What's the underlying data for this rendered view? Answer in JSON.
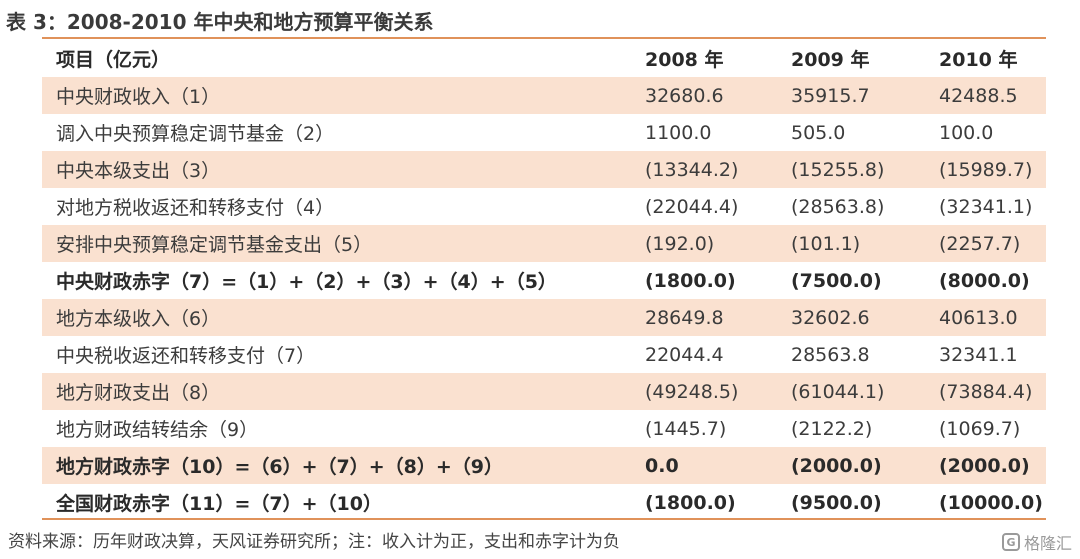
{
  "caption": "表 3：2008-2010 年中央和地方预算平衡关系",
  "table": {
    "header": [
      "项目（亿元）",
      "2008 年",
      "2009 年",
      "2010 年"
    ],
    "rows": [
      {
        "item": "中央财政收入（1）",
        "y2008": "32680.6",
        "y2009": "35915.7",
        "y2010": "42488.5",
        "bold": false
      },
      {
        "item": "调入中央预算稳定调节基金（2）",
        "y2008": "1100.0",
        "y2009": "505.0",
        "y2010": "100.0",
        "bold": false
      },
      {
        "item": "中央本级支出（3）",
        "y2008": "(13344.2)",
        "y2009": "(15255.8)",
        "y2010": "(15989.7)",
        "bold": false
      },
      {
        "item": "对地方税收返还和转移支付（4）",
        "y2008": "(22044.4)",
        "y2009": "(28563.8)",
        "y2010": "(32341.1)",
        "bold": false
      },
      {
        "item": "安排中央预算稳定调节基金支出（5）",
        "y2008": "(192.0)",
        "y2009": "(101.1)",
        "y2010": "(2257.7)",
        "bold": false
      },
      {
        "item": "中央财政赤字（7）=（1）+（2）+（3）+（4）+（5）",
        "y2008": "(1800.0)",
        "y2009": "(7500.0)",
        "y2010": "(8000.0)",
        "bold": true
      },
      {
        "item": "地方本级收入（6）",
        "y2008": "28649.8",
        "y2009": "32602.6",
        "y2010": "40613.0",
        "bold": false
      },
      {
        "item": "中央税收返还和转移支付（7）",
        "y2008": "22044.4",
        "y2009": "28563.8",
        "y2010": "32341.1",
        "bold": false
      },
      {
        "item": "地方财政支出（8）",
        "y2008": "(49248.5)",
        "y2009": "(61044.1)",
        "y2010": "(73884.4)",
        "bold": false
      },
      {
        "item": "地方财政结转结余（9）",
        "y2008": "(1445.7)",
        "y2009": "(2122.2)",
        "y2010": "(1069.7)",
        "bold": false
      },
      {
        "item": "地方财政赤字（10）=（6）+（7）+（8）+（9）",
        "y2008": "0.0",
        "y2009": "(2000.0)",
        "y2010": "(2000.0)",
        "bold": true
      },
      {
        "item": "全国财政赤字（11）=（7）+（10）",
        "y2008": "(1800.0)",
        "y2009": "(9500.0)",
        "y2010": "(10000.0)",
        "bold": true
      }
    ]
  },
  "source": "资料来源：历年财政决算，天风证券研究所；注：收入计为正，支出和赤字计为负",
  "watermark": {
    "logo": "G",
    "text": "格隆汇"
  },
  "colors": {
    "accent_rule": "#e0925a",
    "row_shade": "#fae1d0"
  }
}
